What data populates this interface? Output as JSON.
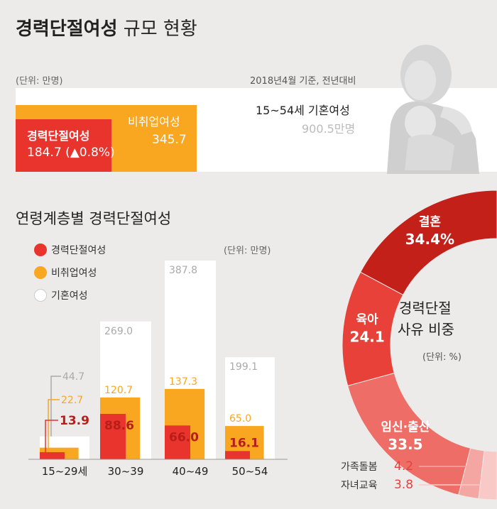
{
  "header": {
    "title_bold": "경력단절여성",
    "title_rest": " 규모 현황",
    "unit": "(단위: 만명)",
    "basis": "2018년4월 기준, 전년대비"
  },
  "summary": {
    "career_break_label": "경력단절여성",
    "career_break_value": "184.7 (▲0.8%)",
    "non_employed_label": "비취업여성",
    "non_employed_value": "345.7",
    "married_label": "15~54세 기혼여성",
    "married_value": "900.5만명"
  },
  "age_section": {
    "title": "연령계층별 경력단절여성",
    "unit": "(단위: 만명)",
    "legend": [
      "경력단절여성",
      "비취업여성",
      "기혼여성"
    ]
  },
  "colors": {
    "career_break": "#e9332d",
    "non_employed": "#f9a621",
    "married": "#ffffff",
    "donut_dark": "#c4201a",
    "donut_mid": "#e8413a",
    "donut_light": "#ef6d67",
    "donut_pale1": "#f4a6a2",
    "donut_pale2": "#f8c9c6"
  },
  "donut": {
    "center_line1": "경력단절",
    "center_line2": "사유 비중",
    "unit": "(단위: %)"
  },
  "chart_data": [
    {
      "type": "bar",
      "categories": [
        "15~29세",
        "30~39",
        "40~49",
        "50~54"
      ],
      "series": [
        {
          "name": "경력단절여성",
          "values": [
            13.9,
            88.6,
            66.0,
            16.1
          ],
          "labels": [
            "13.9",
            "88.6",
            "66.0",
            "16.1"
          ]
        },
        {
          "name": "비취업여성",
          "values": [
            22.7,
            120.7,
            137.3,
            65.0
          ],
          "labels": [
            "22.7",
            "120.7",
            "137.3",
            "65.0"
          ]
        },
        {
          "name": "기혼여성",
          "values": [
            44.7,
            269.0,
            387.8,
            199.1
          ],
          "labels": [
            "44.7",
            "269.0",
            "387.8",
            "199.1"
          ]
        }
      ]
    },
    {
      "type": "pie",
      "categories": [
        "결혼",
        "육아",
        "임신·출산",
        "가족돌봄",
        "자녀교육"
      ],
      "values": [
        34.4,
        24.1,
        33.5,
        4.2,
        3.8
      ],
      "labels": [
        "34.4%",
        "24.1",
        "33.5",
        "4.2",
        "3.8"
      ]
    }
  ]
}
